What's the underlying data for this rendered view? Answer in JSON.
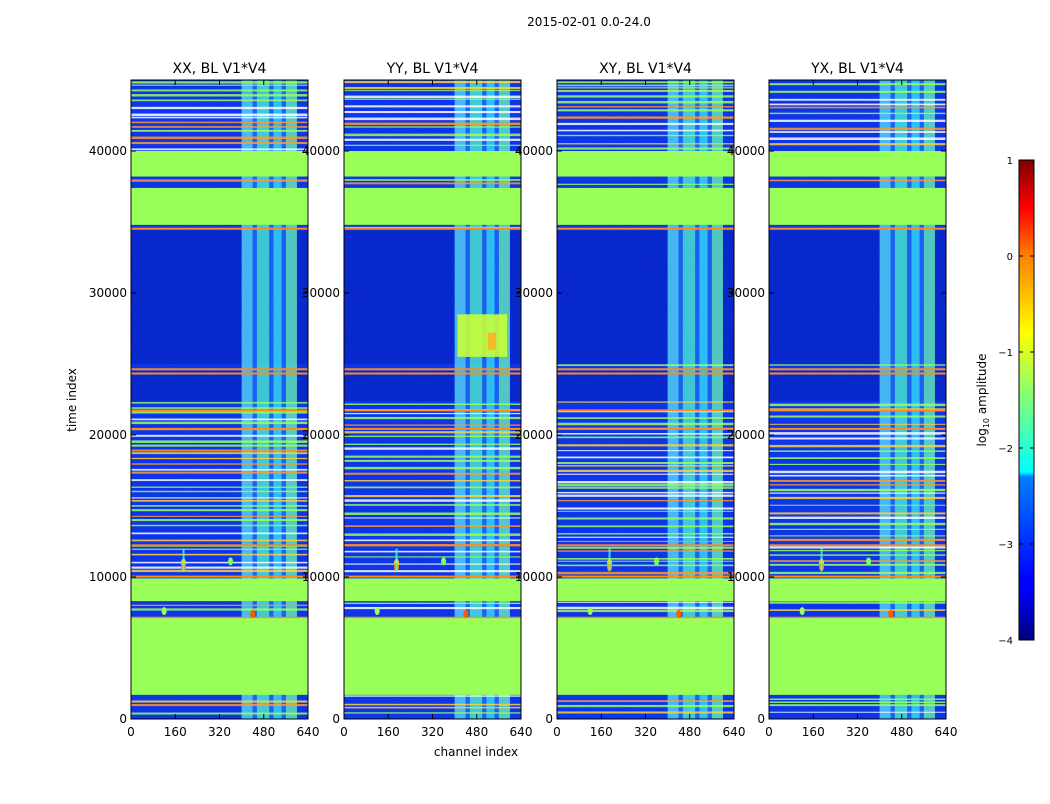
{
  "chart_data": {
    "type": "heatmap",
    "suptitle": "2015-02-01 0.0-24.0",
    "xlabel": "channel index",
    "ylabel": "time index",
    "xlim": [
      0,
      640
    ],
    "ylim": [
      0,
      45000
    ],
    "xticks": [
      0,
      160,
      320,
      480,
      640
    ],
    "yticks": [
      0,
      10000,
      20000,
      30000,
      40000
    ],
    "panels": [
      {
        "title": "XX, BL V1*V4",
        "rfi_spots": true,
        "bright_block": false
      },
      {
        "title": "YY, BL V1*V4",
        "rfi_spots": true,
        "bright_block": true
      },
      {
        "title": "XY, BL V1*V4",
        "rfi_spots": true,
        "bright_block": false
      },
      {
        "title": "YX, BL V1*V4",
        "rfi_spots": true,
        "bright_block": false
      }
    ],
    "flagged_time_ranges": [
      [
        1700,
        7100
      ],
      [
        8300,
        9900
      ],
      [
        34800,
        37400
      ],
      [
        38200,
        40000
      ]
    ],
    "quiet_time_ranges": [
      [
        22400,
        24500
      ],
      [
        25000,
        34400
      ]
    ],
    "active_channel_range": [
      400,
      600
    ],
    "colorbar": {
      "label": "log₁₀ amplitude",
      "label_main": "log",
      "label_sub": "10",
      "label_rest": " amplitude",
      "range": [
        -4,
        1
      ],
      "ticks": [
        "1",
        "0",
        "−1",
        "−2",
        "−3",
        "−4"
      ],
      "colormap": "jet"
    },
    "colors": {
      "flag": "#99ff58",
      "background": "#0b2fe8",
      "deep": "#0015b0"
    }
  }
}
